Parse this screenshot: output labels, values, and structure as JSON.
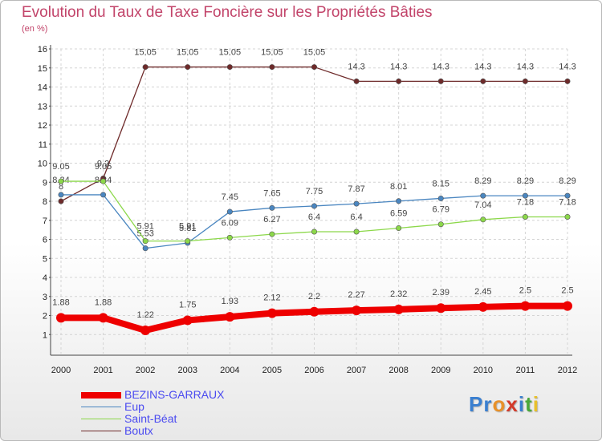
{
  "title": "Evolution du Taux de Taxe Foncière sur les Propriétés Bâties",
  "unit_label": "(en %)",
  "logo": {
    "letters": [
      "P",
      "r",
      "o",
      "x",
      "i",
      "t",
      "i"
    ],
    "colors": [
      "#3a7fd0",
      "#3a7fd0",
      "#e8912a",
      "#d33a2a",
      "#3a7fd0",
      "#4aa83a",
      "#e8c02a"
    ]
  },
  "chart_data": {
    "type": "line",
    "title": "Evolution du Taux de Taxe Foncière sur les Propriétés Bâties",
    "ylabel": "(en %)",
    "x": [
      "2000",
      "2001",
      "2002",
      "2003",
      "2004",
      "2005",
      "2006",
      "2007",
      "2008",
      "2009",
      "2010",
      "2011",
      "2012"
    ],
    "ylim": [
      0,
      16
    ],
    "yticks": [
      1,
      2,
      3,
      4,
      5,
      6,
      7,
      8,
      9,
      10,
      11,
      12,
      13,
      14,
      15,
      16
    ],
    "series": [
      {
        "name": "Boutx",
        "color": "#6e2a2a",
        "values": [
          8.0,
          9.2,
          15.05,
          15.05,
          15.05,
          15.05,
          15.05,
          14.3,
          14.3,
          14.3,
          14.3,
          14.3,
          14.3
        ],
        "labels": [
          "8",
          "9.2",
          "15.05",
          "15.05",
          "15.05",
          "15.05",
          "15.05",
          "14.3",
          "14.3",
          "14.3",
          "14.3",
          "14.3",
          "14.3"
        ]
      },
      {
        "name": "Eup",
        "color": "#4a86c0",
        "values": [
          8.34,
          8.34,
          5.53,
          5.81,
          7.45,
          7.65,
          7.75,
          7.87,
          8.01,
          8.15,
          8.29,
          8.29,
          8.29
        ],
        "labels": [
          "8.34",
          "8.34",
          "5.53",
          "5.81",
          "7.45",
          "7.65",
          "7.75",
          "7.87",
          "8.01",
          "8.15",
          "8.29",
          "8.29",
          "8.29"
        ]
      },
      {
        "name": "Saint-Béat",
        "color": "#8cd84a",
        "values": [
          9.05,
          9.05,
          5.91,
          5.91,
          6.09,
          6.27,
          6.4,
          6.4,
          6.59,
          6.79,
          7.04,
          7.18,
          7.18
        ],
        "labels": [
          "9.05",
          "9.05",
          "5.91",
          "5.91",
          "6.09",
          "6.27",
          "6.4",
          "6.4",
          "6.59",
          "6.79",
          "7.04",
          "7.18",
          "7.18"
        ]
      },
      {
        "name": "BEZINS-GARRAUX",
        "color": "#ee0000",
        "values": [
          1.88,
          1.88,
          1.22,
          1.75,
          1.93,
          2.12,
          2.2,
          2.27,
          2.32,
          2.39,
          2.45,
          2.5,
          2.5
        ],
        "labels": [
          "1.88",
          "1.88",
          "1.22",
          "1.75",
          "1.93",
          "2.12",
          "2.2",
          "2.27",
          "2.32",
          "2.39",
          "2.45",
          "2.5",
          "2.5"
        ]
      }
    ],
    "legend": [
      "BEZINS-GARRAUX",
      "Eup",
      "Saint-Béat",
      "Boutx"
    ]
  }
}
